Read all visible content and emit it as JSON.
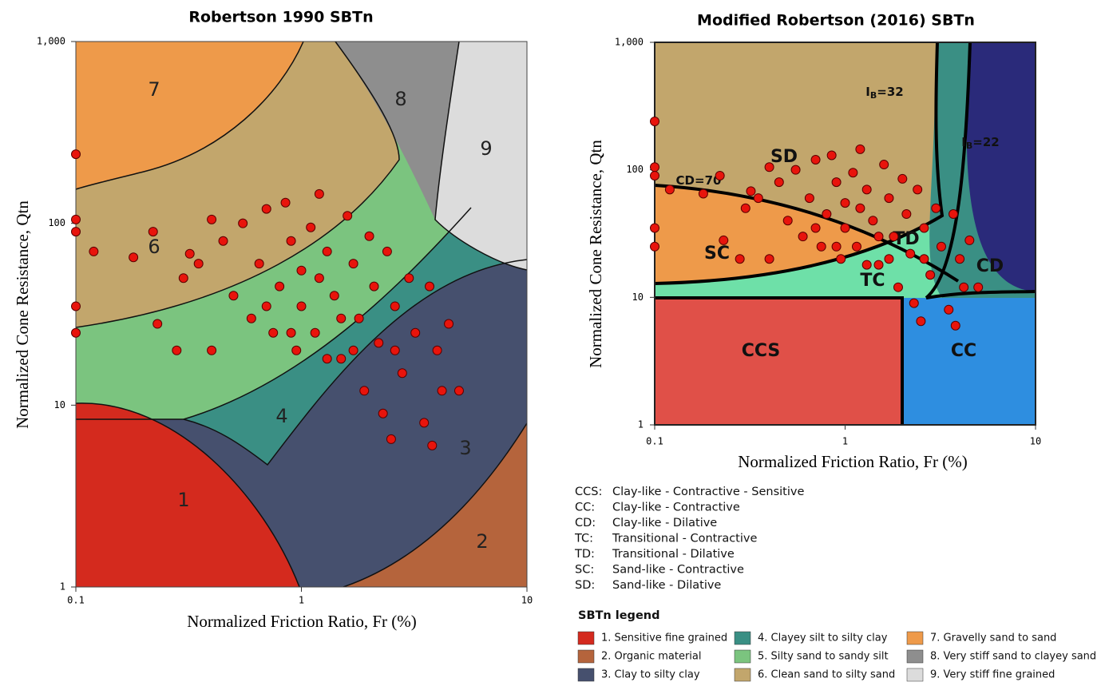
{
  "chart_data": [
    {
      "type": "scatter",
      "title": "Robertson 1990 SBTn",
      "x_label": "Normalized Friction Ratio, Fr (%)",
      "y_label": "Normalized Cone Resistance, Qtn",
      "log_x": true,
      "log_y": true,
      "xlim": [
        0.1,
        10
      ],
      "ylim": [
        1,
        1000
      ],
      "xticks": [
        {
          "value": 0.1,
          "label": "0.1"
        },
        1,
        10
      ],
      "yticks": [
        1,
        10,
        100,
        {
          "value": 1000,
          "label": "1,000"
        }
      ],
      "color": "#e8140c",
      "x": [
        0.1,
        0.1,
        0.1,
        0.1,
        0.1,
        0.12,
        0.18,
        0.22,
        0.23,
        0.28,
        0.3,
        0.32,
        0.35,
        0.4,
        0.4,
        0.45,
        0.5,
        0.55,
        0.6,
        0.65,
        0.7,
        0.75,
        0.8,
        0.85,
        0.9,
        0.95,
        1.0,
        1.0,
        1.1,
        1.15,
        1.2,
        1.3,
        1.4,
        1.5,
        1.6,
        1.7,
        1.8,
        1.9,
        2.0,
        2.1,
        2.2,
        2.3,
        2.4,
        2.5,
        2.6,
        2.8,
        3.0,
        3.2,
        3.5,
        3.7,
        3.8,
        4.0,
        4.2,
        4.5,
        5.0,
        0.9,
        1.3,
        1.7,
        2.6,
        0.7,
        1.2,
        1.5
      ],
      "values": [
        240,
        105,
        90,
        35,
        25,
        70,
        65,
        90,
        28,
        20,
        50,
        68,
        60,
        20,
        105,
        80,
        40,
        100,
        30,
        60,
        120,
        25,
        45,
        130,
        80,
        20,
        55,
        35,
        95,
        25,
        145,
        70,
        40,
        18,
        110,
        60,
        30,
        12,
        85,
        45,
        22,
        9,
        70,
        6.5,
        35,
        15,
        50,
        25,
        8,
        45,
        6,
        20,
        12,
        28,
        12,
        25,
        18,
        20,
        20,
        35,
        50,
        30
      ],
      "annotations": [
        {
          "text": "1"
        },
        {
          "text": "2"
        },
        {
          "text": "3"
        },
        {
          "text": "4"
        },
        {
          "text": "6"
        },
        {
          "text": "7"
        },
        {
          "text": "8"
        },
        {
          "text": "9"
        }
      ]
    },
    {
      "type": "scatter",
      "title": "Modified Robertson (2016) SBTn",
      "x_label": "Normalized Friction Ratio, Fr (%)",
      "y_label": "Normalized Cone Resistance, Qtn",
      "log_x": true,
      "log_y": true,
      "xlim": [
        0.1,
        10
      ],
      "ylim": [
        1,
        1000
      ],
      "xticks": [
        {
          "value": 0.1,
          "label": "0.1"
        },
        1,
        10
      ],
      "yticks": [
        1,
        10,
        100,
        {
          "value": 1000,
          "label": "1,000"
        }
      ],
      "color": "#e8140c",
      "x": [
        0.1,
        0.1,
        0.1,
        0.1,
        0.1,
        0.12,
        0.18,
        0.22,
        0.23,
        0.28,
        0.3,
        0.32,
        0.35,
        0.4,
        0.4,
        0.45,
        0.5,
        0.55,
        0.6,
        0.65,
        0.7,
        0.75,
        0.8,
        0.85,
        0.9,
        0.95,
        1.0,
        1.0,
        1.1,
        1.15,
        1.2,
        1.3,
        1.4,
        1.5,
        1.6,
        1.7,
        1.8,
        1.9,
        2.0,
        2.1,
        2.2,
        2.3,
        2.4,
        2.5,
        2.6,
        2.8,
        3.0,
        3.2,
        3.5,
        3.7,
        3.8,
        4.0,
        4.2,
        4.5,
        5.0,
        0.9,
        1.3,
        1.7,
        2.6,
        0.7,
        1.2,
        1.5
      ],
      "values": [
        240,
        105,
        90,
        35,
        25,
        70,
        65,
        90,
        28,
        20,
        50,
        68,
        60,
        20,
        105,
        80,
        40,
        100,
        30,
        60,
        120,
        25,
        45,
        130,
        80,
        20,
        55,
        35,
        95,
        25,
        145,
        70,
        40,
        18,
        110,
        60,
        30,
        12,
        85,
        45,
        22,
        9,
        70,
        6.5,
        35,
        15,
        50,
        25,
        8,
        45,
        6,
        20,
        12,
        28,
        12,
        25,
        18,
        20,
        20,
        35,
        50,
        30
      ],
      "annotations": [
        {
          "text": "CCS"
        },
        {
          "text": "CC"
        },
        {
          "text": "CD"
        },
        {
          "text": "TC"
        },
        {
          "text": "TD"
        },
        {
          "text": "SC"
        },
        {
          "text": "SD"
        },
        {
          "text": "CD=70"
        },
        {
          "text": "I",
          "sub": "B",
          "rest": "=32"
        },
        {
          "text": "I",
          "sub": "B",
          "rest": "=22"
        }
      ]
    }
  ],
  "legend": {
    "abbreviations": [
      {
        "code": "CCS:",
        "text": "Clay-like - Contractive - Sensitive"
      },
      {
        "code": "CC:",
        "text": "Clay-like - Contractive"
      },
      {
        "code": "CD:",
        "text": "Clay-like - Dilative"
      },
      {
        "code": "TC:",
        "text": "Transitional - Contractive"
      },
      {
        "code": "TD:",
        "text": "Transitional - Dilative"
      },
      {
        "code": "SC:",
        "text": "Sand-like - Contractive"
      },
      {
        "code": "SD:",
        "text": "Sand-like - Dilative"
      }
    ],
    "title": "SBTn legend",
    "items": [
      {
        "label": "1. Sensitive fine grained",
        "color": "#d42a1e"
      },
      {
        "label": "2. Organic material",
        "color": "#b5643c"
      },
      {
        "label": "3. Clay to silty clay",
        "color": "#46506e"
      },
      {
        "label": "4. Clayey silt to silty clay",
        "color": "#3a8f84"
      },
      {
        "label": "5. Silty sand to sandy silt",
        "color": "#7bc47f"
      },
      {
        "label": "6. Clean sand to silty sand",
        "color": "#c2a66c"
      },
      {
        "label": "7. Gravelly sand to sand",
        "color": "#ee9a4a"
      },
      {
        "label": "8. Very stiff sand to clayey sand",
        "color": "#8e8e8e"
      },
      {
        "label": "9. Very stiff fine grained",
        "color": "#dcdcdc"
      }
    ]
  }
}
